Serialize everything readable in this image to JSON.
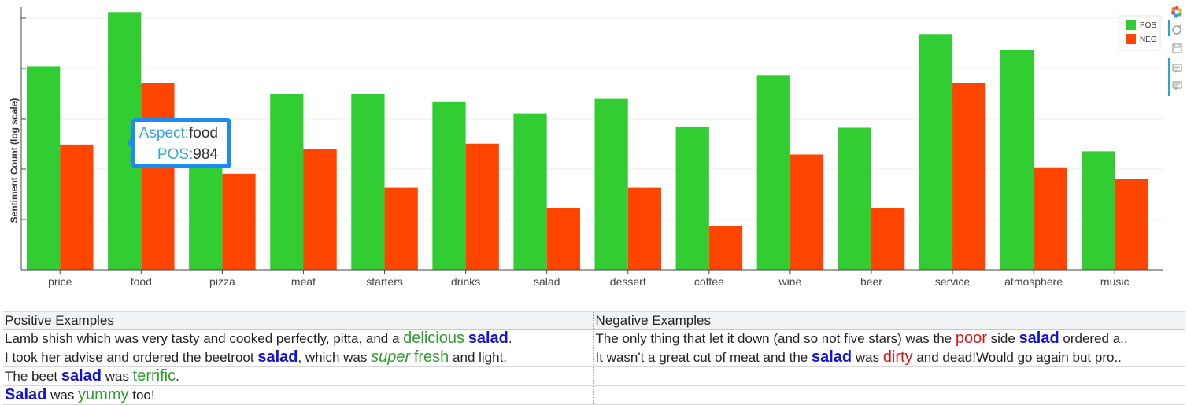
{
  "chart_data": {
    "type": "bar",
    "categories": [
      "price",
      "food",
      "pizza",
      "meat",
      "starters",
      "drinks",
      "salad",
      "dessert",
      "coffee",
      "wine",
      "beer",
      "service",
      "atmosphere",
      "music"
    ],
    "series": [
      {
        "name": "POS",
        "color": "#32cd32",
        "values": [
          290,
          984,
          40,
          155,
          157,
          130,
          100,
          140,
          75,
          235,
          73,
          600,
          420,
          43
        ]
      },
      {
        "name": "NEG",
        "color": "#ff4500",
        "values": [
          50,
          200,
          26,
          45,
          19,
          51,
          12,
          19,
          8,
          40,
          12,
          198,
          30,
          23
        ]
      }
    ],
    "ylabel": "Sentiment Count (log scale)",
    "yscale": "log",
    "ylim": [
      3,
      1100
    ],
    "grid": true,
    "legend_position": "top-right"
  },
  "tooltip": {
    "aspect_key": "Aspect:",
    "aspect_value": "food",
    "pos_key": "POS:",
    "pos_value": "984"
  },
  "toolbar": {
    "icons": [
      "bokeh-logo-icon",
      "pan-icon",
      "save-icon",
      "hover-icon",
      "hover-icon-2"
    ]
  },
  "examples": {
    "positive_header": "Positive Examples",
    "negative_header": "Negative Examples",
    "rows": [
      {
        "pos": [
          {
            "t": "Lamb shish which was very tasty and cooked perfectly, pitta, and a ",
            "c": ""
          },
          {
            "t": "delicious",
            "c": "good"
          },
          {
            "t": " ",
            "c": ""
          },
          {
            "t": "salad",
            "c": "asp"
          },
          {
            "t": ".",
            "c": ""
          }
        ],
        "neg": [
          {
            "t": "The only thing that let it down (and so not five stars) was the ",
            "c": ""
          },
          {
            "t": "poor",
            "c": "bad"
          },
          {
            "t": " side ",
            "c": ""
          },
          {
            "t": "salad",
            "c": "asp"
          },
          {
            "t": " ordered a..",
            "c": ""
          }
        ]
      },
      {
        "pos": [
          {
            "t": "I took her advise and ordered the beetroot ",
            "c": ""
          },
          {
            "t": "salad",
            "c": "asp"
          },
          {
            "t": ", which was ",
            "c": ""
          },
          {
            "t": "super",
            "c": "good-i"
          },
          {
            "t": " ",
            "c": ""
          },
          {
            "t": "fresh",
            "c": "good"
          },
          {
            "t": " and light.",
            "c": ""
          }
        ],
        "neg": [
          {
            "t": "It wasn't a great cut of meat and the ",
            "c": ""
          },
          {
            "t": "salad",
            "c": "asp"
          },
          {
            "t": " was ",
            "c": ""
          },
          {
            "t": "dirty",
            "c": "bad"
          },
          {
            "t": " and dead!Would go again but pro..",
            "c": ""
          }
        ]
      },
      {
        "pos": [
          {
            "t": "The beet ",
            "c": ""
          },
          {
            "t": "salad",
            "c": "asp"
          },
          {
            "t": " was ",
            "c": ""
          },
          {
            "t": "terrific",
            "c": "good"
          },
          {
            "t": ".",
            "c": ""
          }
        ],
        "neg": []
      },
      {
        "pos": [
          {
            "t": "Salad",
            "c": "asp"
          },
          {
            "t": " was ",
            "c": ""
          },
          {
            "t": "yummy",
            "c": "good"
          },
          {
            "t": " too!",
            "c": ""
          }
        ],
        "neg": []
      }
    ]
  }
}
